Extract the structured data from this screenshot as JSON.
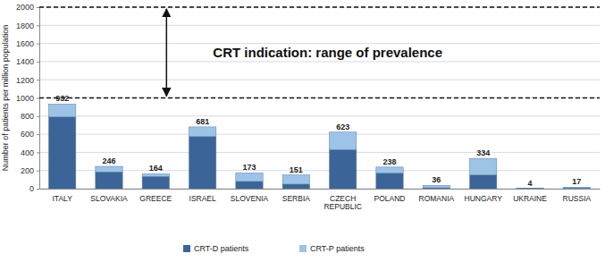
{
  "chart_data": {
    "type": "bar",
    "stacked": true,
    "categories": [
      "ITALY",
      "SLOVAKIA",
      "GREECE",
      "ISRAEL",
      "SLOVENIA",
      "SERBIA",
      "CZECH REPUBLIC",
      "POLAND",
      "ROMANIA",
      "HUNGARY",
      "UKRAINE",
      "RUSSIA"
    ],
    "series": [
      {
        "name": "CRT-D patients",
        "color": "#3b6598",
        "values": [
          790,
          185,
          135,
          575,
          80,
          50,
          430,
          170,
          10,
          150,
          2,
          8
        ]
      },
      {
        "name": "CRT-P patients",
        "color": "#9dc3e6",
        "values": [
          142,
          61,
          29,
          106,
          93,
          101,
          193,
          68,
          26,
          184,
          2,
          9
        ]
      }
    ],
    "totals": [
      932,
      246,
      164,
      681,
      173,
      151,
      623,
      238,
      36,
      334,
      4,
      17
    ],
    "y_label": "Number of patients per million population",
    "ylim": [
      0,
      2000
    ],
    "yticks": [
      0,
      200,
      400,
      600,
      800,
      1000,
      1200,
      1400,
      1600,
      1800,
      2000
    ],
    "grid": true,
    "legend": "bottom",
    "annotations": [
      {
        "text": "CRT indication: range of prevalence",
        "range": [
          1000,
          2000
        ]
      }
    ]
  }
}
